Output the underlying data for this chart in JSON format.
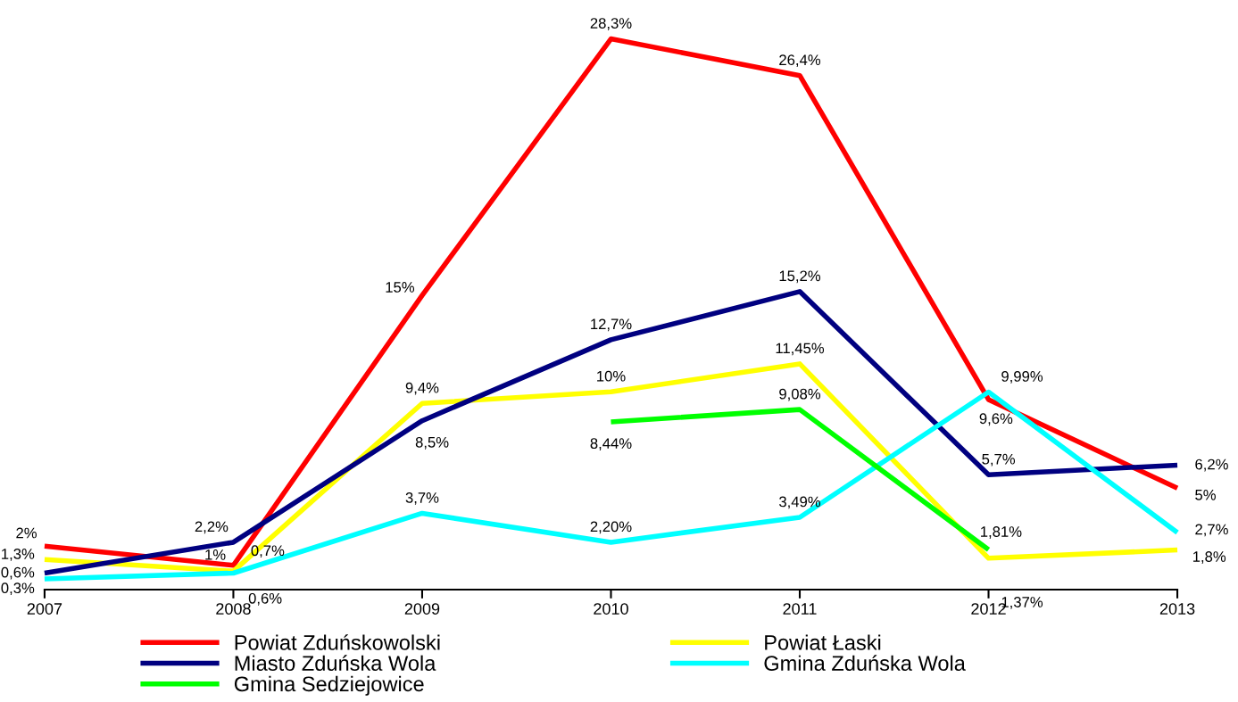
{
  "chart_data": {
    "type": "line",
    "x": [
      2007,
      2008,
      2009,
      2010,
      2011,
      2012,
      2013
    ],
    "xlim": [
      2007,
      2013
    ],
    "xticks": [
      2007,
      2008,
      2009,
      2010,
      2011,
      2012,
      2013
    ],
    "tick_labels": "x",
    "grid": false,
    "legend": "bottom",
    "marker": "none",
    "line_style": "solid",
    "series": [
      {
        "name": "Powiat Zduńskowolski",
        "color": "#ff0000",
        "values": [
          2,
          1,
          15,
          28.3,
          26.4,
          9.6,
          5
        ],
        "value_labels": [
          "2%",
          "1%",
          "15%",
          "28,3%",
          "26,4%",
          "9,6%",
          "5%"
        ]
      },
      {
        "name": "Powiat Łaski",
        "color": "#ffff00",
        "values": [
          1.3,
          0.7,
          9.4,
          10,
          11.45,
          1.37,
          1.8
        ],
        "value_labels": [
          "1,3%",
          "0,7%",
          "9,4%",
          "10%",
          "11,45%",
          "1,37%",
          "1,8%"
        ]
      },
      {
        "name": "Miasto Zduńska Wola",
        "color": "#000080",
        "values": [
          0.6,
          2.2,
          8.5,
          12.7,
          15.2,
          5.7,
          6.2
        ],
        "value_labels": [
          "0,6%",
          "2,2%",
          "8,5%",
          "12,7%",
          "15,2%",
          "5,7%",
          "6,2%"
        ]
      },
      {
        "name": "Gmina Zduńska Wola",
        "color": "#00ffff",
        "values": [
          0.3,
          0.6,
          3.7,
          2.2,
          3.49,
          9.99,
          2.7
        ],
        "value_labels": [
          "0,3%",
          "0,6%",
          "3,7%",
          "2,20%",
          "3,49%",
          "9,99%",
          "2,7%"
        ]
      },
      {
        "name": "Gmina Sedziejowice",
        "color": "#00ff00",
        "values": [
          null,
          null,
          null,
          8.44,
          9.08,
          1.81,
          null
        ],
        "value_labels": [
          null,
          null,
          null,
          "8,44%",
          "9,08%",
          "1,81%",
          null
        ]
      }
    ]
  }
}
